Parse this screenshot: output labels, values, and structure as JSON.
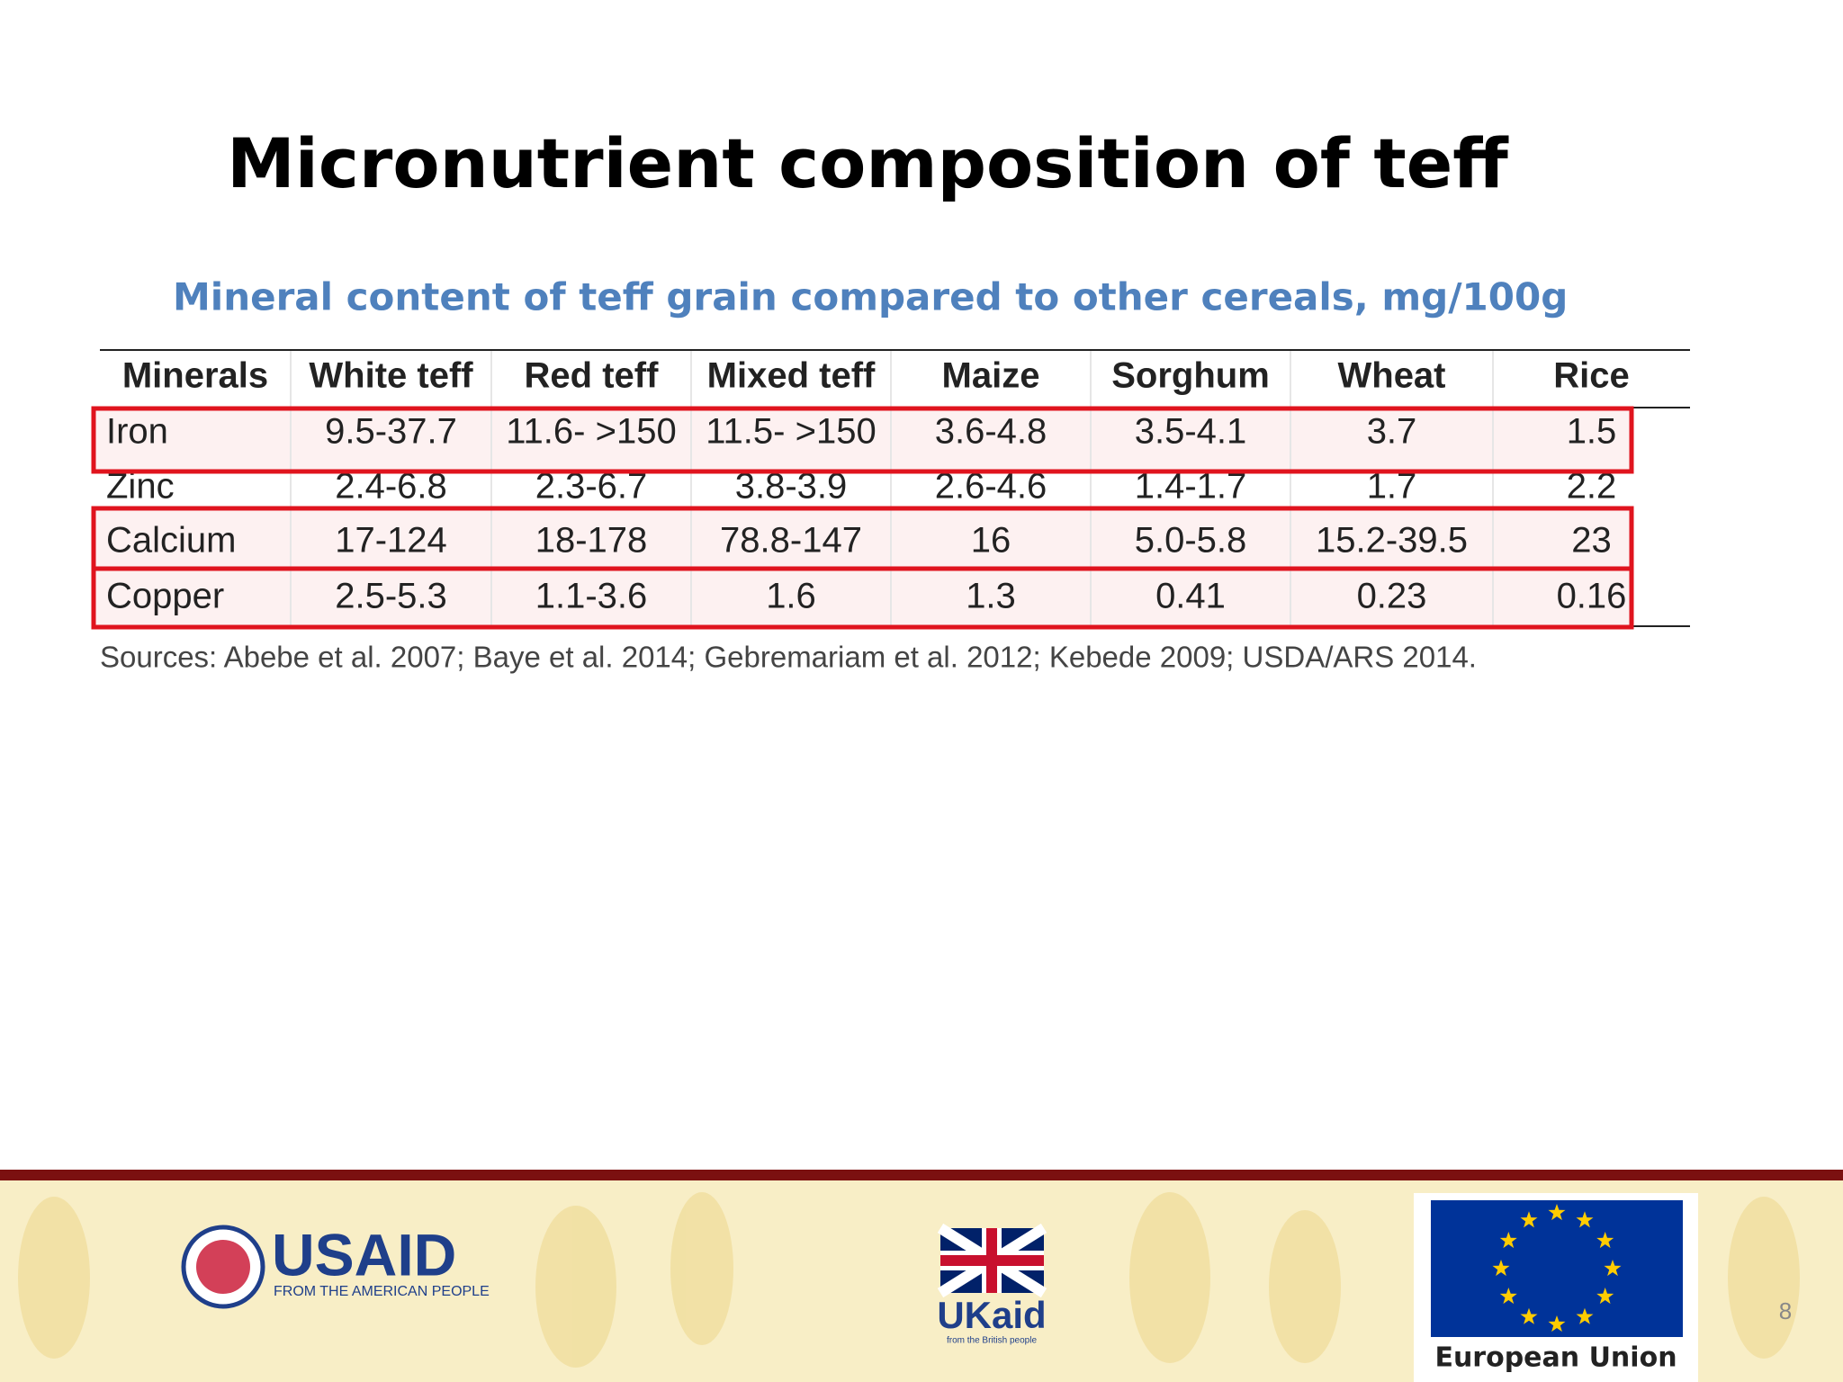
{
  "title": "Micronutrient composition of teff",
  "subtitle": "Mineral content of teff grain compared to other cereals, mg/100g",
  "table": {
    "header": [
      "Minerals",
      "White teff",
      "Red teff",
      "Mixed teff",
      "Maize",
      "Sorghum",
      "Wheat",
      "Rice"
    ],
    "rows": [
      [
        "Iron",
        "9.5-37.7",
        "11.6- >150",
        "11.5- >150",
        "3.6-4.8",
        "3.5-4.1",
        "3.7",
        "1.5"
      ],
      [
        "Zinc",
        "2.4-6.8",
        "2.3-6.7",
        "3.8-3.9",
        "2.6-4.6",
        "1.4-1.7",
        "1.7",
        "2.2"
      ],
      [
        "Calcium",
        "17-124",
        "18-178",
        "78.8-147",
        "16",
        "5.0-5.8",
        "15.2-39.5",
        "23"
      ],
      [
        "Copper",
        "2.5-5.3",
        "1.1-3.6",
        "1.6",
        "1.3",
        "0.41",
        "0.23",
        "0.16"
      ]
    ]
  },
  "sources": "Sources: Abebe et al. 2007; Baye et al. 2014; Gebremariam et al. 2012; Kebede 2009; USDA/ARS 2014.",
  "footer": {
    "usaid": {
      "name": "USAID",
      "tagline": "FROM THE AMERICAN PEOPLE"
    },
    "ukaid": {
      "name": "UKaid",
      "tagline": "from the British people"
    },
    "eu": {
      "name": "European Union"
    },
    "page_number": "8"
  }
}
